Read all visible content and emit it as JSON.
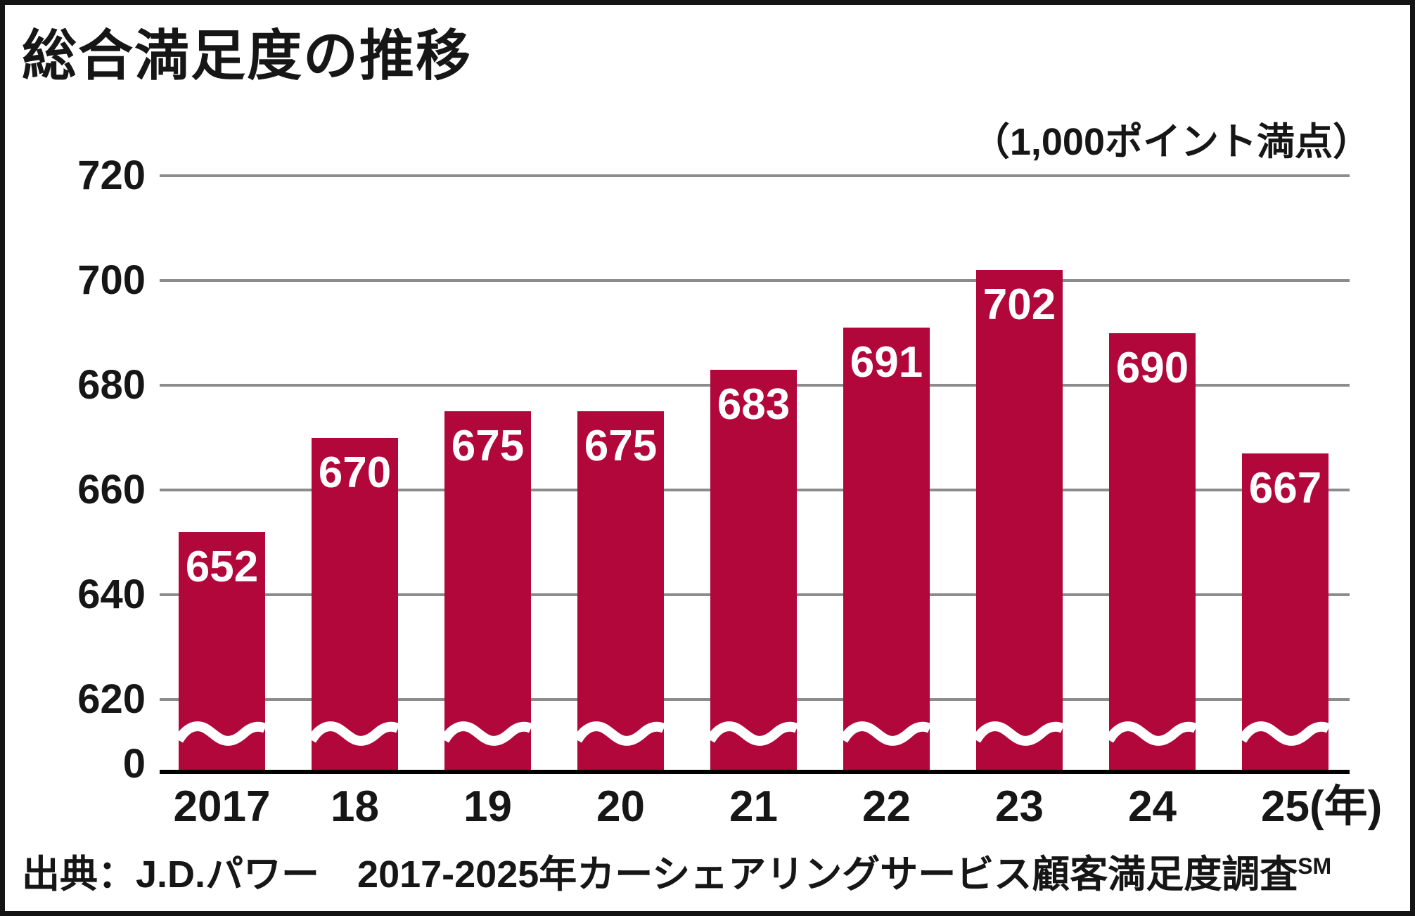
{
  "chart_data": {
    "type": "bar",
    "title": "総合満足度の推移",
    "note": "（1,000ポイント満点）",
    "categories": [
      "2017",
      "18",
      "19",
      "20",
      "21",
      "22",
      "23",
      "24",
      "25"
    ],
    "x_unit_suffix": "(年)",
    "values": [
      652,
      670,
      675,
      675,
      683,
      691,
      702,
      690,
      667
    ],
    "yticks": [
      720,
      700,
      680,
      660,
      640,
      620
    ],
    "baseline_tick": "0",
    "ylim": [
      0,
      720
    ],
    "axis_break_between": [
      0,
      620
    ],
    "grid": true,
    "legend": "none",
    "colors": {
      "bar": "#b1073a",
      "gridline": "#8c8c8c",
      "axis": "#000000",
      "value_label": "#ffffff",
      "text": "#161616"
    }
  },
  "source": {
    "text": "出典：J.D.パワー　2017-2025年カーシェアリングサービス顧客満足度調査",
    "superscript": "SM"
  }
}
